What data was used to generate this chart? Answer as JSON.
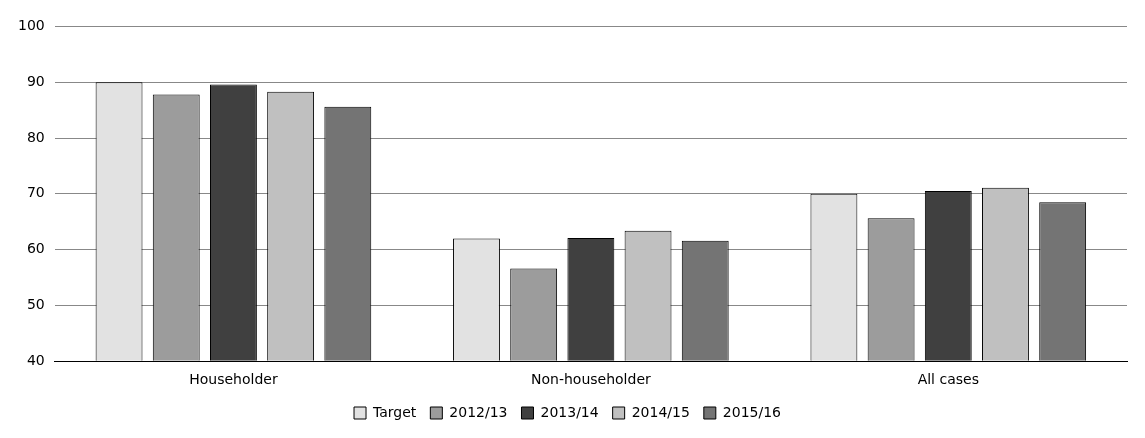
{
  "chart_data": {
    "type": "bar",
    "categories": [
      "Householder",
      "Non-householder",
      "All cases"
    ],
    "series": [
      {
        "name": "Target",
        "color": "#e2e2e2",
        "values": [
          90,
          62,
          70
        ]
      },
      {
        "name": "2012/13",
        "color": "#9c9c9c",
        "values": [
          87.8,
          56.6,
          65.6
        ]
      },
      {
        "name": "2013/14",
        "color": "#404040",
        "values": [
          89.6,
          62.1,
          70.5
        ]
      },
      {
        "name": "2014/15",
        "color": "#c0c0c0",
        "values": [
          88.3,
          63.4,
          71.1
        ]
      },
      {
        "name": "2015/16",
        "color": "#747474",
        "values": [
          85.6,
          61.6,
          68.5
        ]
      }
    ],
    "ylim": [
      40,
      100
    ],
    "yticks": [
      40,
      50,
      60,
      70,
      80,
      90,
      100
    ],
    "grid": "y",
    "legend": "bottom"
  }
}
